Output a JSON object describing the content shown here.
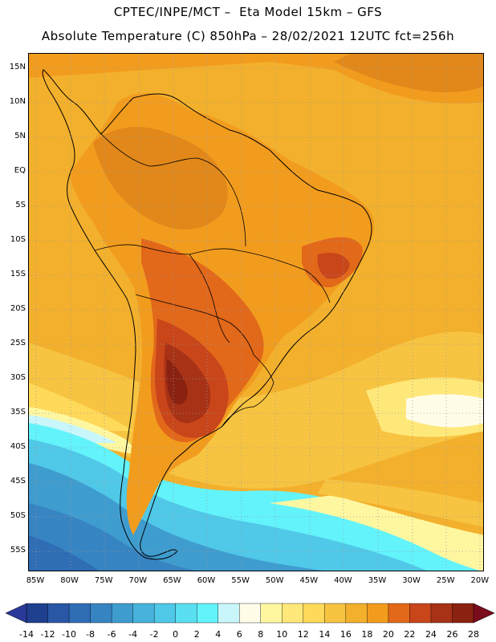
{
  "title": {
    "line1": "CPTEC/INPE/MCT –  Eta Model 15km – GFS",
    "line2": "Absolute Temperature (C) 850hPa – 28/02/2021 12UTC fct=256h"
  },
  "map": {
    "lat_labels": [
      "15N",
      "10N",
      "5N",
      "EQ",
      "5S",
      "10S",
      "15S",
      "20S",
      "25S",
      "30S",
      "35S",
      "40S",
      "45S",
      "50S",
      "55S"
    ],
    "lon_labels": [
      "85W",
      "80W",
      "75W",
      "70W",
      "65W",
      "60W",
      "55W",
      "50W",
      "45W",
      "40W",
      "35W",
      "30W",
      "25W",
      "20W"
    ]
  },
  "colorbar": {
    "labels": [
      "-14",
      "-12",
      "-10",
      "-8",
      "-6",
      "-4",
      "-2",
      "0",
      "2",
      "4",
      "6",
      "8",
      "10",
      "12",
      "14",
      "16",
      "18",
      "20",
      "22",
      "24",
      "26",
      "28"
    ],
    "colors": [
      "#1f3f8f",
      "#2a57a5",
      "#2f6db5",
      "#3784c2",
      "#3f9ccf",
      "#47b3dc",
      "#50c8e8",
      "#5adff0",
      "#63f3fb",
      "#c9f6fb",
      "#fffce8",
      "#fff7a0",
      "#ffe87a",
      "#ffd95a",
      "#f7c441",
      "#f3b02c",
      "#f29c1e",
      "#e2681a",
      "#c9451a",
      "#a83216",
      "#8a2211"
    ],
    "low_color": "#2a3a9a",
    "high_color": "#7a0c1e"
  }
}
